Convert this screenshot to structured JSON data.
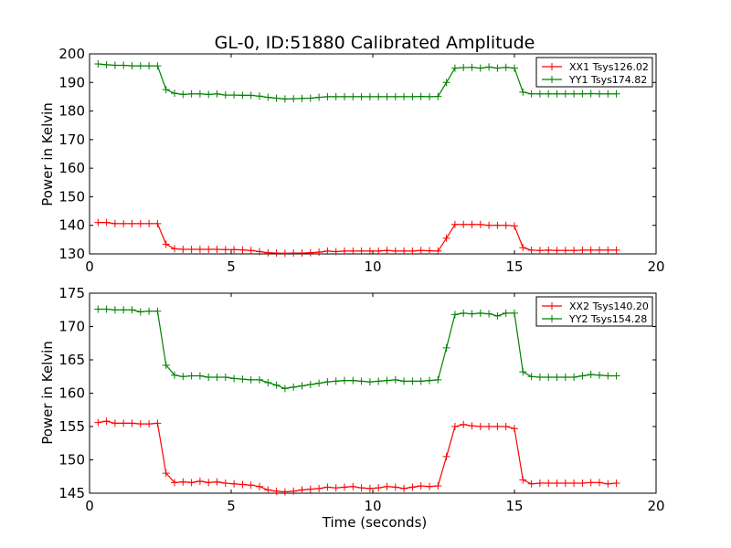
{
  "chart_data": [
    {
      "type": "line",
      "title": "GL-0, ID:51880 Calibrated Amplitude",
      "xlabel": "",
      "ylabel": "Power in Kelvin",
      "xlim": [
        0,
        20
      ],
      "ylim": [
        130,
        200
      ],
      "xticks": [
        0,
        5,
        10,
        15,
        20
      ],
      "yticks": [
        130,
        140,
        150,
        160,
        170,
        180,
        190,
        200
      ],
      "legend_position": "top-right",
      "x": [
        0.3,
        0.6,
        0.9,
        1.2,
        1.5,
        1.8,
        2.1,
        2.4,
        2.7,
        3.0,
        3.3,
        3.6,
        3.9,
        4.2,
        4.5,
        4.8,
        5.1,
        5.4,
        5.7,
        6.0,
        6.3,
        6.6,
        6.9,
        7.2,
        7.5,
        7.8,
        8.1,
        8.4,
        8.7,
        9.0,
        9.3,
        9.6,
        9.9,
        10.2,
        10.5,
        10.8,
        11.1,
        11.4,
        11.7,
        12.0,
        12.3,
        12.6,
        12.9,
        13.2,
        13.5,
        13.8,
        14.1,
        14.4,
        14.7,
        15.0,
        15.3,
        15.6,
        15.9,
        16.2,
        16.5,
        16.8,
        17.1,
        17.4,
        17.7,
        18.0,
        18.3,
        18.6
      ],
      "series": [
        {
          "name": "XX1 Tsys126.02",
          "color": "#ff0000",
          "values": [
            141.0,
            141.0,
            140.6,
            140.6,
            140.6,
            140.6,
            140.6,
            140.6,
            133.4,
            131.8,
            131.6,
            131.6,
            131.6,
            131.6,
            131.6,
            131.5,
            131.5,
            131.4,
            131.2,
            130.8,
            130.4,
            130.3,
            130.2,
            130.3,
            130.3,
            130.4,
            130.6,
            131.0,
            130.8,
            131.0,
            131.0,
            131.0,
            131.0,
            131.0,
            131.2,
            131.0,
            131.0,
            131.0,
            131.2,
            131.1,
            131.0,
            135.5,
            140.3,
            140.3,
            140.3,
            140.3,
            140.0,
            140.0,
            140.0,
            139.8,
            132.2,
            131.3,
            131.2,
            131.3,
            131.2,
            131.2,
            131.2,
            131.3,
            131.3,
            131.3,
            131.3,
            131.3
          ]
        },
        {
          "name": "YY1 Tsys174.82",
          "color": "#008000",
          "values": [
            196.5,
            196.2,
            196.0,
            196.0,
            195.8,
            195.8,
            195.8,
            195.8,
            187.5,
            186.2,
            185.8,
            186.0,
            186.0,
            185.8,
            186.0,
            185.6,
            185.6,
            185.5,
            185.5,
            185.2,
            184.8,
            184.5,
            184.2,
            184.3,
            184.4,
            184.5,
            184.8,
            185.0,
            185.0,
            185.0,
            185.0,
            185.0,
            185.0,
            185.0,
            185.0,
            185.0,
            185.0,
            185.0,
            185.1,
            185.0,
            185.1,
            190.0,
            195.0,
            195.2,
            195.3,
            195.0,
            195.4,
            195.0,
            195.3,
            195.0,
            186.6,
            186.0,
            186.0,
            186.0,
            186.0,
            186.0,
            186.0,
            186.0,
            186.1,
            186.0,
            186.0,
            186.0
          ]
        }
      ]
    },
    {
      "type": "line",
      "title": "",
      "xlabel": "Time (seconds)",
      "ylabel": "Power in Kelvin",
      "xlim": [
        0,
        20
      ],
      "ylim": [
        145,
        175
      ],
      "xticks": [
        0,
        5,
        10,
        15,
        20
      ],
      "yticks": [
        145,
        150,
        155,
        160,
        165,
        170,
        175
      ],
      "legend_position": "top-right",
      "x": [
        0.3,
        0.6,
        0.9,
        1.2,
        1.5,
        1.8,
        2.1,
        2.4,
        2.7,
        3.0,
        3.3,
        3.6,
        3.9,
        4.2,
        4.5,
        4.8,
        5.1,
        5.4,
        5.7,
        6.0,
        6.3,
        6.6,
        6.9,
        7.2,
        7.5,
        7.8,
        8.1,
        8.4,
        8.7,
        9.0,
        9.3,
        9.6,
        9.9,
        10.2,
        10.5,
        10.8,
        11.1,
        11.4,
        11.7,
        12.0,
        12.3,
        12.6,
        12.9,
        13.2,
        13.5,
        13.8,
        14.1,
        14.4,
        14.7,
        15.0,
        15.3,
        15.6,
        15.9,
        16.2,
        16.5,
        16.8,
        17.1,
        17.4,
        17.7,
        18.0,
        18.3,
        18.6
      ],
      "series": [
        {
          "name": "XX2 Tsys140.20",
          "color": "#ff0000",
          "values": [
            155.6,
            155.8,
            155.5,
            155.5,
            155.5,
            155.4,
            155.4,
            155.5,
            148.0,
            146.6,
            146.7,
            146.6,
            146.8,
            146.6,
            146.7,
            146.5,
            146.4,
            146.3,
            146.2,
            146.0,
            145.5,
            145.3,
            145.2,
            145.3,
            145.5,
            145.6,
            145.7,
            145.9,
            145.8,
            145.9,
            146.0,
            145.8,
            145.7,
            145.8,
            146.0,
            145.9,
            145.7,
            145.9,
            146.1,
            146.0,
            146.1,
            150.5,
            155.0,
            155.3,
            155.1,
            155.0,
            155.0,
            155.0,
            155.0,
            154.7,
            147.0,
            146.4,
            146.5,
            146.5,
            146.5,
            146.5,
            146.5,
            146.5,
            146.6,
            146.6,
            146.4,
            146.5
          ]
        },
        {
          "name": "YY2 Tsys154.28",
          "color": "#008000",
          "values": [
            172.6,
            172.6,
            172.5,
            172.5,
            172.5,
            172.2,
            172.3,
            172.3,
            164.2,
            162.7,
            162.5,
            162.6,
            162.6,
            162.4,
            162.4,
            162.4,
            162.2,
            162.1,
            162.0,
            162.0,
            161.6,
            161.2,
            160.7,
            160.9,
            161.1,
            161.3,
            161.5,
            161.7,
            161.8,
            161.9,
            161.9,
            161.8,
            161.7,
            161.8,
            161.9,
            162.0,
            161.8,
            161.8,
            161.8,
            161.9,
            162.0,
            166.8,
            171.8,
            172.0,
            171.9,
            172.0,
            171.9,
            171.6,
            172.0,
            172.0,
            163.2,
            162.5,
            162.4,
            162.4,
            162.4,
            162.4,
            162.4,
            162.6,
            162.8,
            162.7,
            162.6,
            162.6
          ]
        }
      ]
    }
  ]
}
